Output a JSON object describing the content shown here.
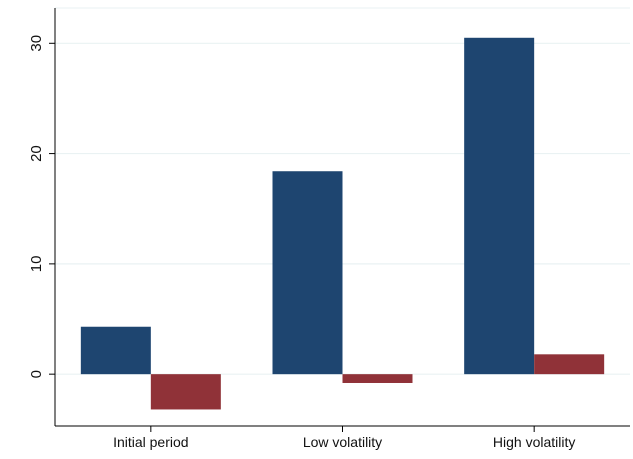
{
  "chart_data": {
    "type": "bar",
    "title": "",
    "xlabel": "",
    "ylabel": "",
    "categories": [
      "Initial period",
      "Low volatility",
      "High volatility"
    ],
    "series": [
      {
        "values": [
          4.3,
          18.4,
          30.5
        ],
        "color": "#1e4570"
      },
      {
        "values": [
          -3.2,
          -0.8,
          1.8
        ],
        "color": "#903238"
      }
    ],
    "ylim": [
      -4.7,
      33.2
    ],
    "yticks": [
      0,
      10,
      20,
      30
    ],
    "grid": true,
    "legend": "none",
    "colors": {
      "gridline": "#eaf2f3",
      "axis": "#000000",
      "background": "#ffffff"
    }
  }
}
